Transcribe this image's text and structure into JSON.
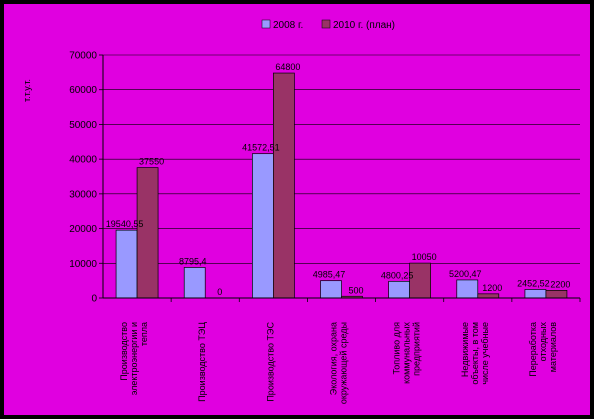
{
  "colors": {
    "background": "#e000e0",
    "frame": "#000000",
    "series_2008": "#9999ff",
    "series_2010": "#993366",
    "gridline": "#000000"
  },
  "chart_data": {
    "type": "bar",
    "title": "",
    "xlabel": "",
    "ylabel": "т.т.у.т.",
    "ylim": [
      0,
      70000
    ],
    "yticks": [
      0,
      10000,
      20000,
      30000,
      40000,
      50000,
      60000,
      70000
    ],
    "grid": true,
    "legend_position": "top-center",
    "categories": [
      "Производство электроэнергии и тепла",
      "Производство ТЭЦ",
      "Производство ТЭС",
      "Экология, охрана окружающей среды",
      "Топливо для коммунальных предприятий",
      "Недвижимые объекты, в том числе учебные",
      "Переработка отходных материалов"
    ],
    "series": [
      {
        "name": "2008 г.",
        "values": [
          19540.55,
          8795.4,
          41572.51,
          4985.47,
          4800.25,
          5200.47,
          2452.52
        ],
        "labels": [
          "19540,55",
          "8795,4",
          "41572,51",
          "4985,47",
          "4800,25",
          "5200,47",
          "2452,52"
        ]
      },
      {
        "name": "2010 г. (план)",
        "values": [
          37550,
          0,
          64800,
          500,
          10050,
          1200,
          2200
        ],
        "labels": [
          "37550",
          "0",
          "64800",
          "500",
          "10050",
          "1200",
          "2200"
        ]
      }
    ]
  }
}
